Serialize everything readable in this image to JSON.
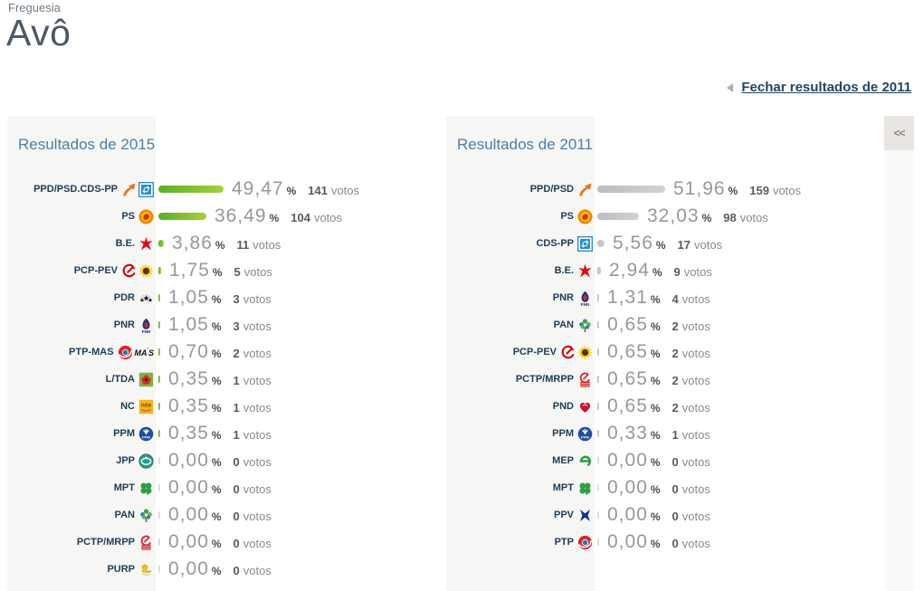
{
  "page": {
    "kicker": "Freguesia",
    "title": "Avô"
  },
  "toolbar": {
    "close_link": "Fechar resultados de 2011",
    "collapse_label": "<<"
  },
  "units": {
    "percent_sign": "%",
    "votes_word": "votos"
  },
  "colors": {
    "green_bar_start": "#5aaf28",
    "green_bar_end": "#a9cf3c",
    "gray_bar_start": "#bdbdbd",
    "gray_bar_end": "#d2d2d2",
    "zero_bar": "#dcdcdc",
    "accent_blue": "#4c7ea3",
    "navy": "#1c3c55"
  },
  "panels": [
    {
      "title": "Resultados de 2015",
      "bar_style": "green",
      "rows": [
        {
          "party": "PPD/PSD.CDS-PP",
          "icons": [
            "psd-arrow",
            "cds-badge"
          ],
          "pct": "49,47",
          "votes": "141"
        },
        {
          "party": "PS",
          "icons": [
            "ps-badge"
          ],
          "pct": "36,49",
          "votes": "104"
        },
        {
          "party": "B.E.",
          "icons": [
            "be-star"
          ],
          "pct": "3,86",
          "votes": "11"
        },
        {
          "party": "PCP-PEV",
          "icons": [
            "pcp-sickle",
            "pev-sunflower"
          ],
          "pct": "1,75",
          "votes": "5"
        },
        {
          "party": "PDR",
          "icons": [
            "pdr-stars"
          ],
          "pct": "1,05",
          "votes": "3"
        },
        {
          "party": "PNR",
          "icons": [
            "pnr-flame"
          ],
          "pct": "1,05",
          "votes": "3"
        },
        {
          "party": "PTP-MAS",
          "icons": [
            "ptp-swirl",
            "mas-text"
          ],
          "pct": "0,70",
          "votes": "2"
        },
        {
          "party": "L/TDA",
          "icons": [
            "ltda-flower"
          ],
          "pct": "0,35",
          "votes": "1"
        },
        {
          "party": "NC",
          "icons": [
            "nc-badge"
          ],
          "pct": "0,35",
          "votes": "1"
        },
        {
          "party": "PPM",
          "icons": [
            "ppm-badge"
          ],
          "pct": "0,35",
          "votes": "1"
        },
        {
          "party": "JPP",
          "icons": [
            "jpp-badge"
          ],
          "pct": "0,00",
          "votes": "0"
        },
        {
          "party": "MPT",
          "icons": [
            "mpt-clover"
          ],
          "pct": "0,00",
          "votes": "0"
        },
        {
          "party": "PAN",
          "icons": [
            "pan-tree"
          ],
          "pct": "0,00",
          "votes": "0"
        },
        {
          "party": "PCTP/MRPP",
          "icons": [
            "mrpp-badge"
          ],
          "pct": "0,00",
          "votes": "0"
        },
        {
          "party": "PURP",
          "icons": [
            "purp-badge"
          ],
          "pct": "0,00",
          "votes": "0"
        }
      ]
    },
    {
      "title": "Resultados de 2011",
      "bar_style": "gray",
      "rows": [
        {
          "party": "PPD/PSD",
          "icons": [
            "psd-arrow"
          ],
          "pct": "51,96",
          "votes": "159"
        },
        {
          "party": "PS",
          "icons": [
            "ps-badge"
          ],
          "pct": "32,03",
          "votes": "98"
        },
        {
          "party": "CDS-PP",
          "icons": [
            "cds-badge"
          ],
          "pct": "5,56",
          "votes": "17"
        },
        {
          "party": "B.E.",
          "icons": [
            "be-star"
          ],
          "pct": "2,94",
          "votes": "9"
        },
        {
          "party": "PNR",
          "icons": [
            "pnr-flame"
          ],
          "pct": "1,31",
          "votes": "4"
        },
        {
          "party": "PAN",
          "icons": [
            "pan-tree"
          ],
          "pct": "0,65",
          "votes": "2"
        },
        {
          "party": "PCP-PEV",
          "icons": [
            "pcp-sickle",
            "pev-sunflower"
          ],
          "pct": "0,65",
          "votes": "2"
        },
        {
          "party": "PCTP/MRPP",
          "icons": [
            "mrpp-badge"
          ],
          "pct": "0,65",
          "votes": "2"
        },
        {
          "party": "PND",
          "icons": [
            "pnd-heart"
          ],
          "pct": "0,65",
          "votes": "2"
        },
        {
          "party": "PPM",
          "icons": [
            "ppm-badge"
          ],
          "pct": "0,33",
          "votes": "1"
        },
        {
          "party": "MEP",
          "icons": [
            "mep-leaf"
          ],
          "pct": "0,00",
          "votes": "0"
        },
        {
          "party": "MPT",
          "icons": [
            "mpt-clover"
          ],
          "pct": "0,00",
          "votes": "0"
        },
        {
          "party": "PPV",
          "icons": [
            "ppv-cross"
          ],
          "pct": "0,00",
          "votes": "0"
        },
        {
          "party": "PTP",
          "icons": [
            "ptp-swirl"
          ],
          "pct": "0,00",
          "votes": "0"
        }
      ]
    }
  ]
}
